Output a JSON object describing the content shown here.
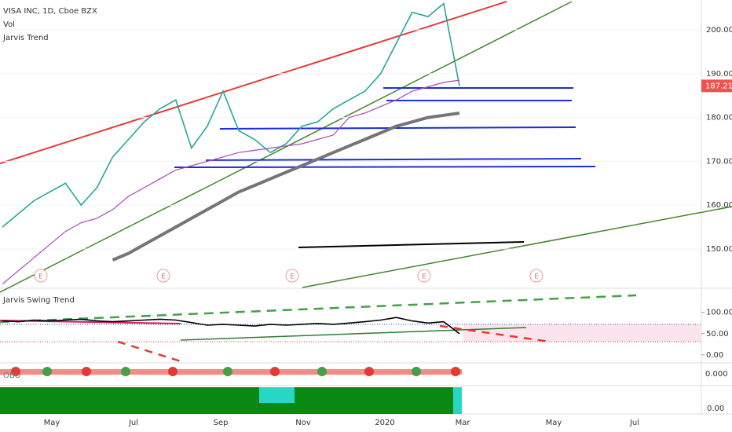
{
  "header": {
    "symbol": "VISA INC, 1D, Cboe BZX",
    "volume": "Vol",
    "indicator": "Jarvis Trend"
  },
  "chart_data": {
    "type": "line",
    "categories": [
      null,
      null,
      null,
      null,
      null,
      null,
      null,
      null,
      null,
      null,
      null,
      null,
      null,
      null,
      null,
      null,
      null,
      null,
      null,
      null,
      null,
      null,
      null,
      null,
      null,
      null,
      null,
      null,
      null,
      null
    ],
    "series": [
      {
        "color": "#26a69a",
        "values": [
          155,
          158,
          161,
          163,
          165,
          160,
          164,
          171,
          175,
          179,
          182,
          184,
          173,
          178,
          186,
          177,
          175,
          172,
          174,
          178,
          179,
          182,
          184,
          186,
          190,
          197,
          204,
          203,
          206,
          187.21
        ]
      },
      {
        "color": "#ab47bc",
        "values": [
          142,
          145,
          148,
          151,
          154,
          156,
          157,
          159,
          162,
          164,
          166,
          168,
          169,
          170,
          171,
          172,
          172.5,
          173,
          173.5,
          174,
          175,
          176,
          180,
          181,
          182.5,
          184,
          186,
          187,
          188,
          188.5
        ]
      },
      {
        "color": "#757575",
        "values": [
          null,
          null,
          null,
          null,
          null,
          null,
          null,
          147.5,
          149,
          151,
          153,
          155,
          157,
          159,
          161,
          163,
          164.5,
          166,
          167.5,
          169,
          170.5,
          172,
          173.5,
          175,
          176.5,
          178,
          179,
          180,
          180.5,
          181
        ]
      }
    ],
    "ylim": [
      141.4,
      206.8
    ],
    "yticks": [
      {
        "value": 150,
        "label": "150.00"
      },
      {
        "value": 160,
        "label": "160.00"
      },
      {
        "value": 170,
        "label": "170.00"
      },
      {
        "value": 180,
        "label": "180.00"
      },
      {
        "value": 190,
        "label": "190.00"
      },
      {
        "value": 200,
        "label": "200.00"
      }
    ],
    "last_price": 187.21,
    "earnings": [
      "E",
      "E",
      "E",
      "E",
      "E"
    ],
    "x_axis_labels": [
      "May",
      "Jul",
      "Sep",
      "Nov",
      "2020",
      "Mar",
      "May",
      "Jul"
    ]
  },
  "swing_panel": {
    "type": "line",
    "title": "Jarvis Swing Trend",
    "series": [
      {
        "color": "#000000",
        "values": [
          80,
          78,
          82,
          80,
          82,
          84,
          80,
          78,
          80,
          82,
          84,
          82,
          76,
          70,
          72,
          70,
          68,
          72,
          70,
          72,
          74,
          72,
          75,
          78,
          82,
          88,
          80,
          75,
          78,
          50
        ]
      }
    ],
    "ylim": [
      -15,
      142
    ],
    "yticks": [
      {
        "value": 0,
        "label": "0.00"
      },
      {
        "value": 50,
        "label": "50.00"
      },
      {
        "value": 100,
        "label": "100.00"
      }
    ]
  },
  "obo_panel": {
    "title": "OBO",
    "tick": "0.000"
  },
  "bottom_panel": {
    "tick": "0.00"
  }
}
